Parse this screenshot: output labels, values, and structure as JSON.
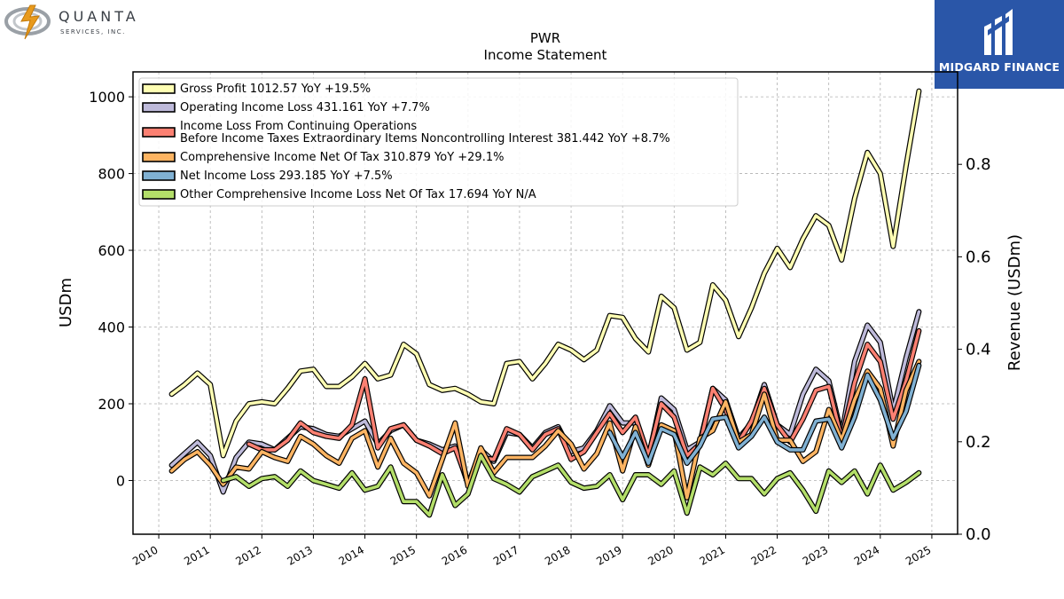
{
  "branding": {
    "left_logo_name": "QUANTA",
    "left_logo_sub": "SERVICES, INC.",
    "right_logo_name": "MIDGARD FINANCE"
  },
  "chart_data": {
    "type": "line",
    "title": "PWR",
    "subtitle": "Income Statement",
    "ylabel": "USDm",
    "y2label": "Revenue (USDm)",
    "ylim": [
      -140,
      1065
    ],
    "y2lim": [
      0.0,
      1.0
    ],
    "xlim": [
      2009.5,
      2025.5
    ],
    "xticks": [
      "2010",
      "2011",
      "2012",
      "2013",
      "2014",
      "2015",
      "2016",
      "2017",
      "2018",
      "2019",
      "2020",
      "2021",
      "2022",
      "2023",
      "2024",
      "2025"
    ],
    "yticks": [
      0,
      200,
      400,
      600,
      800,
      1000
    ],
    "y2ticks": [
      "0.0",
      "0.2",
      "0.4",
      "0.6",
      "0.8"
    ],
    "grid": true,
    "legend_position": "top-left",
    "legend": [
      "Gross Profit  1012.57 YoY +19.5%",
      "Operating Income Loss  431.161 YoY +7.7%",
      "Income Loss From Continuing Operations\nBefore Income Taxes Extraordinary Items Noncontrolling Interest  381.442 YoY +8.7%",
      "Comprehensive Income Net Of Tax  310.879 YoY +29.1%",
      "Net Income Loss  293.185 YoY +7.5%",
      "Other Comprehensive Income Loss Net Of Tax  17.694 YoY N/A"
    ],
    "series": [
      {
        "name": "Gross Profit",
        "color": "#ffffb3",
        "x": [
          2010.25,
          2010.5,
          2010.75,
          2011,
          2011.25,
          2011.5,
          2011.75,
          2012,
          2012.25,
          2012.5,
          2012.75,
          2013,
          2013.25,
          2013.5,
          2013.75,
          2014,
          2014.25,
          2014.5,
          2014.75,
          2015,
          2015.25,
          2015.5,
          2015.75,
          2016,
          2016.25,
          2016.5,
          2016.75,
          2017,
          2017.25,
          2017.5,
          2017.75,
          2018,
          2018.25,
          2018.5,
          2018.75,
          2019,
          2019.25,
          2019.5,
          2019.75,
          2020,
          2020.25,
          2020.5,
          2020.75,
          2021,
          2021.25,
          2021.5,
          2021.75,
          2022,
          2022.25,
          2022.5,
          2022.75,
          2023,
          2023.25,
          2023.5,
          2023.75,
          2024,
          2024.25,
          2024.5,
          2024.75
        ],
        "values": [
          225,
          250,
          280,
          250,
          65,
          155,
          200,
          205,
          200,
          240,
          285,
          290,
          245,
          245,
          270,
          305,
          265,
          275,
          355,
          330,
          250,
          235,
          240,
          225,
          205,
          200,
          305,
          310,
          265,
          305,
          355,
          340,
          315,
          340,
          430,
          425,
          370,
          335,
          480,
          450,
          340,
          360,
          510,
          470,
          375,
          450,
          540,
          605,
          555,
          630,
          690,
          665,
          575,
          735,
          855,
          800,
          610,
          820,
          1015
        ]
      },
      {
        "name": "Operating Income Loss",
        "color": "#bebada",
        "x": [
          2010.25,
          2010.5,
          2010.75,
          2011,
          2011.25,
          2011.5,
          2011.75,
          2012,
          2012.25,
          2012.5,
          2012.75,
          2013,
          2013.25,
          2013.5,
          2013.75,
          2014,
          2014.25,
          2014.5,
          2014.75,
          2015,
          2015.25,
          2015.5,
          2015.75,
          2016,
          2016.25,
          2016.5,
          2016.75,
          2017,
          2017.25,
          2017.5,
          2017.75,
          2018,
          2018.25,
          2018.5,
          2018.75,
          2019,
          2019.25,
          2019.5,
          2019.75,
          2020,
          2020.25,
          2020.5,
          2020.75,
          2021,
          2021.25,
          2021.5,
          2021.75,
          2022,
          2022.25,
          2022.5,
          2022.75,
          2023,
          2023.25,
          2023.5,
          2023.75,
          2024,
          2024.25,
          2024.5,
          2024.75
        ],
        "values": [
          40,
          70,
          100,
          65,
          -30,
          60,
          100,
          95,
          80,
          110,
          140,
          135,
          120,
          115,
          135,
          155,
          95,
          130,
          145,
          105,
          95,
          80,
          90,
          -10,
          80,
          50,
          125,
          120,
          85,
          125,
          140,
          75,
          85,
          130,
          195,
          150,
          150,
          60,
          215,
          185,
          80,
          100,
          240,
          210,
          110,
          150,
          250,
          145,
          120,
          225,
          290,
          260,
          120,
          310,
          405,
          360,
          180,
          320,
          440
        ]
      },
      {
        "name": "Income Loss From Continuing Operations Before Income Taxes Extraordinary Items Noncontrolling Interest",
        "color": "#fb8072",
        "x": [
          2010.25,
          2010.5,
          2010.75,
          2011,
          2011.25,
          2011.5,
          2011.75,
          2012,
          2012.25,
          2012.5,
          2012.75,
          2013,
          2013.25,
          2013.5,
          2013.75,
          2014,
          2014.25,
          2014.5,
          2014.75,
          2015,
          2015.25,
          2015.5,
          2015.75,
          2016,
          2016.25,
          2016.5,
          2016.75,
          2017,
          2017.25,
          2017.5,
          2017.75,
          2018,
          2018.25,
          2018.5,
          2018.75,
          2019,
          2019.25,
          2019.5,
          2019.75,
          2020,
          2020.25,
          2020.5,
          2020.75,
          2021,
          2021.25,
          2021.5,
          2021.75,
          2022,
          2022.25,
          2022.5,
          2022.75,
          2023,
          2023.25,
          2023.5,
          2023.75,
          2024,
          2024.25,
          2024.5,
          2024.75
        ],
        "values": [
          null,
          null,
          null,
          null,
          null,
          null,
          95,
          80,
          80,
          105,
          150,
          125,
          115,
          110,
          145,
          265,
          85,
          135,
          145,
          105,
          90,
          70,
          85,
          -5,
          60,
          55,
          135,
          120,
          80,
          120,
          135,
          55,
          75,
          125,
          175,
          125,
          165,
          65,
          200,
          165,
          65,
          95,
          240,
          185,
          100,
          155,
          240,
          145,
          100,
          160,
          235,
          245,
          110,
          255,
          355,
          310,
          160,
          260,
          390
        ]
      },
      {
        "name": "Comprehensive Income Net Of Tax",
        "color": "#fdb462",
        "x": [
          2010.25,
          2010.5,
          2010.75,
          2011,
          2011.25,
          2011.5,
          2011.75,
          2012,
          2012.25,
          2012.5,
          2012.75,
          2013,
          2013.25,
          2013.5,
          2013.75,
          2014,
          2014.25,
          2014.5,
          2014.75,
          2015,
          2015.25,
          2015.5,
          2015.75,
          2016,
          2016.25,
          2016.5,
          2016.75,
          2017,
          2017.25,
          2017.5,
          2017.75,
          2018,
          2018.25,
          2018.5,
          2018.75,
          2019,
          2019.25,
          2019.5,
          2019.75,
          2020,
          2020.25,
          2020.5,
          2020.75,
          2021,
          2021.25,
          2021.5,
          2021.75,
          2022,
          2022.25,
          2022.5,
          2022.75,
          2023,
          2023.25,
          2023.5,
          2023.75,
          2024,
          2024.25,
          2024.5,
          2024.75
        ],
        "values": [
          25,
          55,
          75,
          40,
          -10,
          35,
          30,
          75,
          60,
          50,
          115,
          95,
          65,
          45,
          110,
          130,
          35,
          110,
          45,
          20,
          -40,
          55,
          150,
          -15,
          85,
          20,
          60,
          60,
          60,
          90,
          130,
          95,
          30,
          70,
          150,
          25,
          140,
          40,
          145,
          130,
          -45,
          110,
          130,
          205,
          100,
          120,
          225,
          105,
          105,
          50,
          75,
          185,
          105,
          210,
          285,
          240,
          90,
          235,
          310
        ]
      },
      {
        "name": "Net Income Loss",
        "color": "#80b1d3",
        "x": [
          2018.75,
          2019,
          2019.25,
          2019.5,
          2019.75,
          2020,
          2020.25,
          2020.5,
          2020.75,
          2021,
          2021.25,
          2021.5,
          2021.75,
          2022,
          2022.25,
          2022.5,
          2022.75,
          2023,
          2023.25,
          2023.5,
          2023.75,
          2024,
          2024.25,
          2024.5,
          2024.75
        ],
        "values": [
          125,
          60,
          125,
          45,
          135,
          120,
          45,
          90,
          160,
          165,
          85,
          115,
          165,
          100,
          80,
          80,
          155,
          160,
          85,
          165,
          275,
          210,
          110,
          180,
          300
        ]
      },
      {
        "name": "Other Comprehensive Income Loss Net Of Tax",
        "color": "#b3de69",
        "x": [
          2011.25,
          2011.5,
          2011.75,
          2012,
          2012.25,
          2012.5,
          2012.75,
          2013,
          2013.25,
          2013.5,
          2013.75,
          2014,
          2014.25,
          2014.5,
          2014.75,
          2015,
          2015.25,
          2015.5,
          2015.75,
          2016,
          2016.25,
          2016.5,
          2016.75,
          2017,
          2017.25,
          2017.5,
          2017.75,
          2018,
          2018.25,
          2018.5,
          2018.75,
          2019,
          2019.25,
          2019.5,
          2019.75,
          2020,
          2020.25,
          2020.5,
          2020.75,
          2021,
          2021.25,
          2021.5,
          2021.75,
          2022,
          2022.25,
          2022.5,
          2022.75,
          2023,
          2023.25,
          2023.5,
          2023.75,
          2024,
          2024.25,
          2024.5,
          2024.75
        ],
        "values": [
          0,
          10,
          -15,
          5,
          10,
          -15,
          25,
          0,
          -10,
          -20,
          20,
          -25,
          -15,
          35,
          -55,
          -55,
          -90,
          15,
          -65,
          -35,
          65,
          5,
          -10,
          -30,
          10,
          25,
          40,
          -5,
          -20,
          -15,
          15,
          -50,
          15,
          15,
          -10,
          25,
          -85,
          35,
          15,
          45,
          5,
          5,
          -35,
          5,
          20,
          -25,
          -80,
          25,
          -5,
          25,
          -35,
          40,
          -25,
          -5,
          20
        ]
      }
    ]
  }
}
